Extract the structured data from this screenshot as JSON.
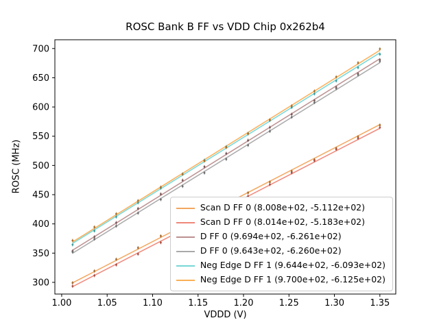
{
  "chart_data": {
    "type": "scatter",
    "title": "ROSC Bank B FF vs VDD Chip 0x262b4",
    "xlabel": "VDDD (V)",
    "ylabel": "ROSC (MHz)",
    "xlim": [
      0.9925,
      1.3675
    ],
    "ylim": [
      280,
      715
    ],
    "xticks": [
      1.0,
      1.05,
      1.1,
      1.15,
      1.2,
      1.25,
      1.3,
      1.35
    ],
    "yticks": [
      300,
      350,
      400,
      450,
      500,
      550,
      600,
      650,
      700
    ],
    "grid": false,
    "legend_position": "lower right",
    "x_points": [
      1.012,
      1.036,
      1.06,
      1.084,
      1.109,
      1.133,
      1.157,
      1.181,
      1.205,
      1.229,
      1.253,
      1.278,
      1.302,
      1.326,
      1.35
    ],
    "series": [
      {
        "label": "Scan D FF 0 (8.008e+02, -5.112e+02)",
        "slope": 800.8,
        "intercept": -511.2,
        "color": "#f2a65e",
        "point_color": "#a5692f"
      },
      {
        "label": "Scan D FF 0 (8.014e+02, -5.183e+02)",
        "slope": 801.4,
        "intercept": -518.3,
        "color": "#ef8677",
        "point_color": "#a84f43"
      },
      {
        "label": "D FF 0 (9.694e+02, -6.261e+02)",
        "slope": 969.4,
        "intercept": -626.1,
        "color": "#bc8f8f",
        "point_color": "#7a5858"
      },
      {
        "label": "D FF 0 (9.643e+02, -6.260e+02)",
        "slope": 964.3,
        "intercept": -626.0,
        "color": "#a9a9a9",
        "point_color": "#6f6f6f"
      },
      {
        "label": "Neg Edge D FF 1 (9.644e+02, -6.093e+02)",
        "slope": 964.4,
        "intercept": -609.3,
        "color": "#76d7d7",
        "point_color": "#3f9b9b"
      },
      {
        "label": "Neg Edge D FF 1 (9.700e+02, -6.125e+02)",
        "slope": 970.0,
        "intercept": -612.5,
        "color": "#fbae55",
        "point_color": "#a8702c"
      }
    ]
  }
}
